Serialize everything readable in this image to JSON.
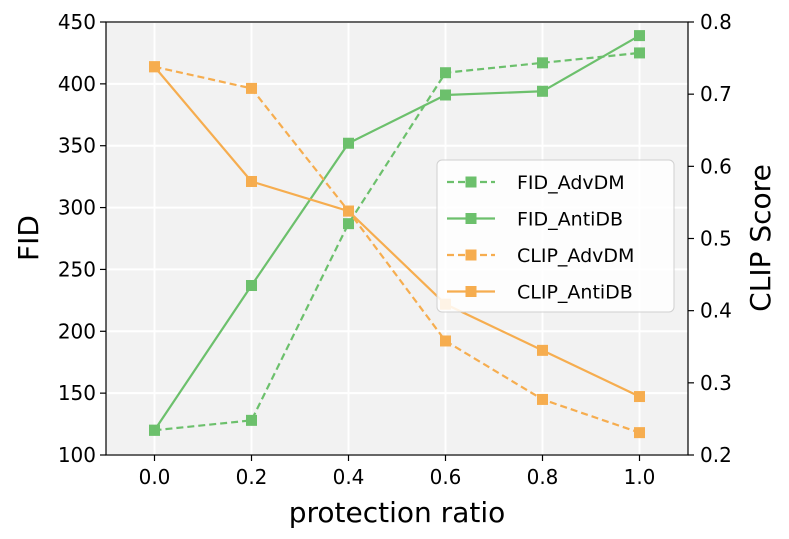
{
  "chart_data": {
    "type": "line",
    "x": [
      0.0,
      0.2,
      0.4,
      0.6,
      0.8,
      1.0
    ],
    "x_ticks": [
      "0.0",
      "0.2",
      "0.4",
      "0.6",
      "0.8",
      "1.0"
    ],
    "xlim": [
      -0.1,
      1.1
    ],
    "xlabel": "protection ratio",
    "ylabel_left": "FID",
    "ylim_left": [
      100,
      450
    ],
    "y_ticks_left": [
      "100",
      "150",
      "200",
      "250",
      "300",
      "350",
      "400",
      "450"
    ],
    "ylabel_right": "CLIP Score",
    "ylim_right": [
      0.2,
      0.8
    ],
    "y_ticks_right": [
      "0.2",
      "0.3",
      "0.4",
      "0.5",
      "0.6",
      "0.7",
      "0.8"
    ],
    "grid": true,
    "legend_position": "center-right",
    "series": [
      {
        "name": "FID_AdvDM",
        "axis": "left",
        "color": "#6cc06c",
        "linestyle": "dashed",
        "marker": "square",
        "values": [
          120,
          128,
          287,
          409,
          417,
          425
        ]
      },
      {
        "name": "FID_AntiDB",
        "axis": "left",
        "color": "#6cc06c",
        "linestyle": "solid",
        "marker": "square",
        "values": [
          120,
          237,
          352,
          391,
          394,
          439
        ]
      },
      {
        "name": "CLIP_AdvDM",
        "axis": "right",
        "color": "#f6ad4f",
        "linestyle": "dashed",
        "marker": "square",
        "values": [
          0.738,
          0.708,
          0.538,
          0.358,
          0.277,
          0.231
        ]
      },
      {
        "name": "CLIP_AntiDB",
        "axis": "right",
        "color": "#f6ad4f",
        "linestyle": "solid",
        "marker": "square",
        "values": [
          0.738,
          0.579,
          0.538,
          0.409,
          0.345,
          0.281
        ]
      }
    ]
  }
}
